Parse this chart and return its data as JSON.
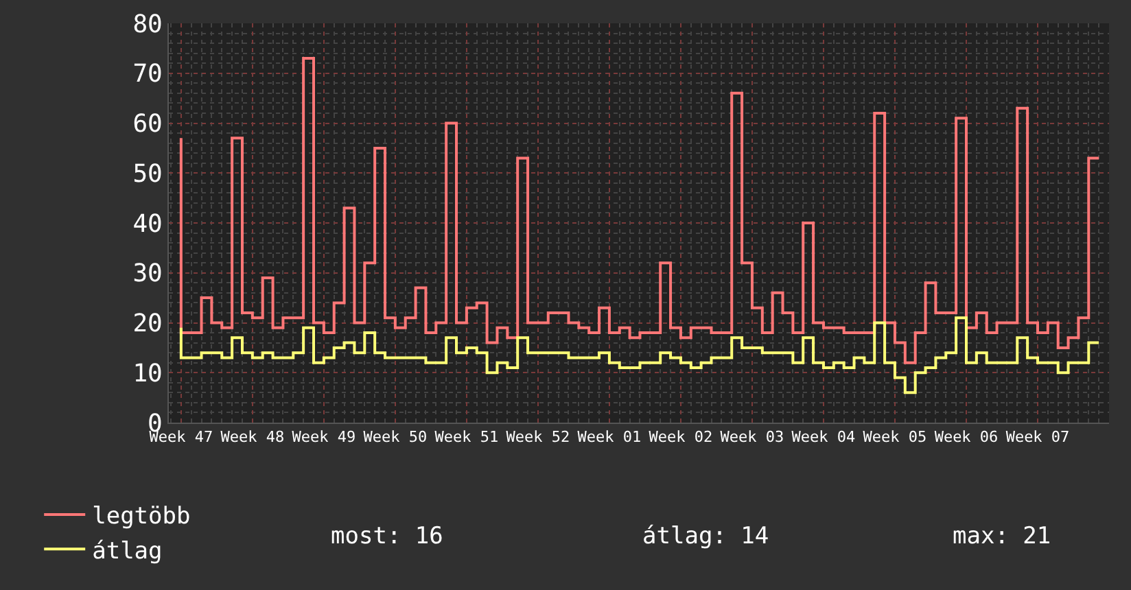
{
  "chart_data": {
    "type": "step",
    "categories": [
      "Week 47",
      null,
      null,
      null,
      null,
      null,
      null,
      "Week 48",
      null,
      null,
      null,
      null,
      null,
      null,
      "Week 49",
      null,
      null,
      null,
      null,
      null,
      null,
      "Week 50",
      null,
      null,
      null,
      null,
      null,
      null,
      "Week 51",
      null,
      null,
      null,
      null,
      null,
      null,
      "Week 52",
      null,
      null,
      null,
      null,
      null,
      null,
      "Week 01",
      null,
      null,
      null,
      null,
      null,
      null,
      "Week 02",
      null,
      null,
      null,
      null,
      null,
      null,
      "Week 03",
      null,
      null,
      null,
      null,
      null,
      null,
      "Week 04",
      null,
      null,
      null,
      null,
      null,
      null,
      "Week 05",
      null,
      null,
      null,
      null,
      null,
      null,
      "Week 06",
      null,
      null,
      null,
      null,
      null,
      null,
      "Week 07",
      null,
      null,
      null,
      null,
      null,
      null
    ],
    "series": [
      {
        "name": "legtöbb",
        "color": "#ff7777",
        "values": [
          57,
          18,
          18,
          25,
          20,
          19,
          57,
          22,
          21,
          29,
          19,
          21,
          21,
          73,
          20,
          18,
          24,
          43,
          20,
          32,
          55,
          21,
          19,
          21,
          27,
          18,
          20,
          60,
          20,
          23,
          24,
          16,
          19,
          17,
          53,
          20,
          20,
          22,
          22,
          20,
          19,
          18,
          23,
          18,
          19,
          17,
          18,
          18,
          32,
          19,
          17,
          19,
          19,
          18,
          18,
          66,
          32,
          23,
          18,
          26,
          22,
          18,
          40,
          20,
          19,
          19,
          18,
          18,
          18,
          62,
          20,
          16,
          12,
          18,
          28,
          22,
          22,
          61,
          19,
          22,
          18,
          20,
          20,
          63,
          20,
          18,
          20,
          15,
          17,
          21,
          53
        ]
      },
      {
        "name": "átlag",
        "color": "#ffff77",
        "values": [
          19,
          13,
          13,
          14,
          14,
          13,
          17,
          14,
          13,
          14,
          13,
          13,
          14,
          19,
          12,
          13,
          15,
          16,
          14,
          18,
          14,
          13,
          13,
          13,
          13,
          12,
          12,
          17,
          14,
          15,
          14,
          10,
          12,
          11,
          17,
          14,
          14,
          14,
          14,
          13,
          13,
          13,
          14,
          12,
          11,
          11,
          12,
          12,
          14,
          13,
          12,
          11,
          12,
          13,
          13,
          17,
          15,
          15,
          14,
          14,
          14,
          12,
          17,
          12,
          11,
          12,
          11,
          13,
          12,
          20,
          12,
          9,
          6,
          10,
          11,
          13,
          14,
          21,
          12,
          14,
          12,
          12,
          12,
          17,
          13,
          12,
          12,
          10,
          12,
          12,
          16
        ]
      }
    ],
    "ylim": [
      0,
      80
    ],
    "yticks": [
      0,
      10,
      20,
      30,
      40,
      50,
      60,
      70,
      80
    ],
    "grid": true,
    "legend": "bottom left",
    "annotations": [
      "most: 16",
      "átlag: 14",
      "max: 21"
    ]
  }
}
